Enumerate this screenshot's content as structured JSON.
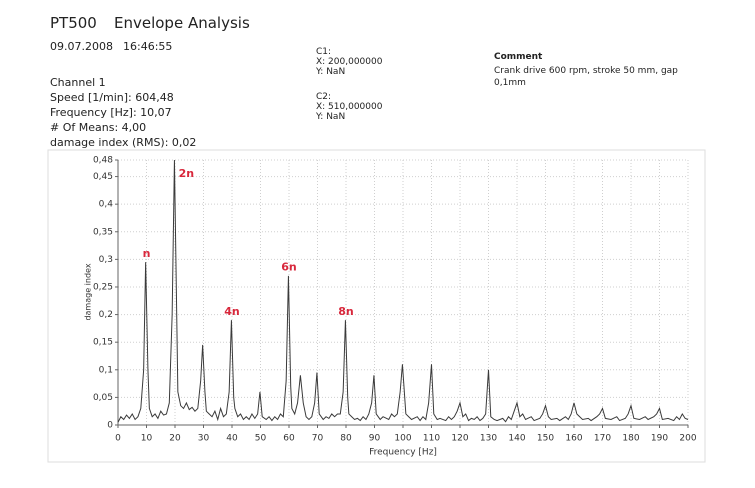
{
  "header": {
    "product": "PT500",
    "title": "Envelope Analysis",
    "date": "09.07.2008",
    "time": "16:46:55",
    "lines": [
      "Channel 1",
      "Speed [1/min]: 604,48",
      "Frequency [Hz]: 10,07",
      "# Of Means: 4,00",
      "damage index (RMS): 0,02"
    ],
    "cursors": [
      {
        "name": "C1:",
        "x": "X: 200,000000",
        "y": "Y: NaN"
      },
      {
        "name": "C2:",
        "x": "X: 510,000000",
        "y": "Y: NaN"
      }
    ],
    "comment_title": "Comment",
    "comment": "Crank drive 600 rpm, stroke 50 mm, gap 0,1mm"
  },
  "chart_data": {
    "type": "line",
    "x_label": "Frequency [Hz]",
    "y_label": "damage index",
    "grid": true,
    "x": [
      0,
      1,
      2,
      3,
      4,
      5,
      6,
      7,
      8,
      9,
      9.7,
      10.5,
      11,
      12,
      13,
      14,
      15,
      16,
      17,
      18,
      19,
      19.8,
      20.6,
      21,
      22,
      23,
      24,
      25,
      26,
      27,
      28,
      29,
      29.7,
      30.5,
      31,
      32,
      33,
      34,
      35,
      36,
      37,
      38,
      39,
      39.8,
      40.6,
      41,
      42,
      43,
      44,
      45,
      46,
      47,
      48,
      49,
      49.8,
      50.6,
      52,
      53,
      54,
      55,
      56,
      57,
      58,
      59,
      59.8,
      60.6,
      61,
      62,
      63,
      64,
      65,
      66,
      67,
      68,
      69,
      69.8,
      70.6,
      72,
      73,
      74,
      75,
      76,
      77,
      78,
      79,
      79.8,
      80.6,
      81,
      82,
      83,
      84,
      85,
      86,
      87,
      88,
      89,
      89.8,
      90.6,
      92,
      93,
      95,
      96,
      97,
      98,
      99,
      99.8,
      100.6,
      101,
      102,
      103,
      105,
      106,
      107,
      108,
      109,
      110,
      110.8,
      112,
      113,
      115,
      116,
      117,
      118,
      119,
      120,
      121,
      122,
      123,
      124,
      125,
      126,
      127,
      128,
      129,
      130,
      130.8,
      132,
      133,
      135,
      136,
      137,
      138,
      139,
      140,
      141,
      142,
      143,
      145,
      146,
      148,
      149,
      150,
      151,
      152,
      154,
      155,
      157,
      158,
      159,
      160,
      161,
      162,
      163,
      165,
      166,
      168,
      169,
      170,
      171,
      173,
      175,
      176,
      178,
      179,
      180,
      181,
      183,
      185,
      186,
      188,
      189,
      190,
      191,
      193,
      195,
      196,
      197,
      198,
      199,
      200
    ],
    "series": [
      {
        "name": "damage index",
        "color": "#3a3a3a",
        "values": [
          0.005,
          0.015,
          0.01,
          0.018,
          0.012,
          0.02,
          0.01,
          0.015,
          0.03,
          0.1,
          0.295,
          0.1,
          0.03,
          0.015,
          0.02,
          0.012,
          0.025,
          0.018,
          0.02,
          0.04,
          0.2,
          0.48,
          0.2,
          0.06,
          0.035,
          0.03,
          0.04,
          0.028,
          0.032,
          0.025,
          0.03,
          0.08,
          0.145,
          0.06,
          0.025,
          0.02,
          0.015,
          0.025,
          0.01,
          0.03,
          0.015,
          0.02,
          0.06,
          0.19,
          0.05,
          0.03,
          0.015,
          0.02,
          0.01,
          0.015,
          0.01,
          0.02,
          0.012,
          0.02,
          0.06,
          0.015,
          0.01,
          0.015,
          0.008,
          0.015,
          0.01,
          0.02,
          0.015,
          0.08,
          0.27,
          0.07,
          0.03,
          0.02,
          0.04,
          0.09,
          0.04,
          0.015,
          0.01,
          0.015,
          0.04,
          0.095,
          0.02,
          0.01,
          0.015,
          0.012,
          0.02,
          0.015,
          0.02,
          0.02,
          0.06,
          0.19,
          0.05,
          0.02,
          0.015,
          0.01,
          0.012,
          0.008,
          0.015,
          0.01,
          0.02,
          0.04,
          0.09,
          0.02,
          0.01,
          0.015,
          0.01,
          0.02,
          0.015,
          0.02,
          0.06,
          0.11,
          0.05,
          0.02,
          0.015,
          0.01,
          0.015,
          0.008,
          0.015,
          0.01,
          0.04,
          0.11,
          0.02,
          0.01,
          0.012,
          0.008,
          0.015,
          0.01,
          0.015,
          0.025,
          0.04,
          0.015,
          0.02,
          0.008,
          0.012,
          0.01,
          0.015,
          0.008,
          0.012,
          0.02,
          0.1,
          0.015,
          0.01,
          0.008,
          0.012,
          0.006,
          0.015,
          0.01,
          0.025,
          0.04,
          0.015,
          0.02,
          0.01,
          0.015,
          0.008,
          0.012,
          0.02,
          0.035,
          0.015,
          0.01,
          0.012,
          0.008,
          0.015,
          0.01,
          0.02,
          0.04,
          0.02,
          0.015,
          0.01,
          0.012,
          0.008,
          0.015,
          0.02,
          0.03,
          0.012,
          0.01,
          0.015,
          0.008,
          0.012,
          0.02,
          0.035,
          0.012,
          0.01,
          0.015,
          0.01,
          0.015,
          0.02,
          0.03,
          0.01,
          0.012,
          0.008,
          0.015,
          0.01,
          0.02,
          0.012,
          0.01
        ]
      }
    ],
    "xlim": [
      0,
      200
    ],
    "xticks": [
      0,
      10,
      20,
      30,
      40,
      50,
      60,
      70,
      80,
      90,
      100,
      110,
      120,
      130,
      140,
      150,
      160,
      170,
      180,
      190,
      200
    ],
    "ylim": [
      0,
      0.48
    ],
    "yticks": [
      0,
      {
        "value": 0.05,
        "label": "0,05"
      },
      {
        "value": 0.1,
        "label": "0,1"
      },
      {
        "value": 0.15,
        "label": "0,15"
      },
      {
        "value": 0.2,
        "label": "0,2"
      },
      {
        "value": 0.25,
        "label": "0,25"
      },
      {
        "value": 0.3,
        "label": "0,3"
      },
      {
        "value": 0.35,
        "label": "0,35"
      },
      {
        "value": 0.4,
        "label": "0,4"
      },
      {
        "value": 0.45,
        "label": "0,45"
      },
      {
        "value": 0.48,
        "label": "0,48"
      }
    ],
    "annotation_color": "#d8283c",
    "annotations": [
      {
        "text": "n",
        "x": 10,
        "y": 0.31
      },
      {
        "text": "2n",
        "x": 24,
        "y": 0.455
      },
      {
        "text": "4n",
        "x": 40,
        "y": 0.205
      },
      {
        "text": "6n",
        "x": 60,
        "y": 0.285
      },
      {
        "text": "8n",
        "x": 80,
        "y": 0.205
      }
    ]
  }
}
